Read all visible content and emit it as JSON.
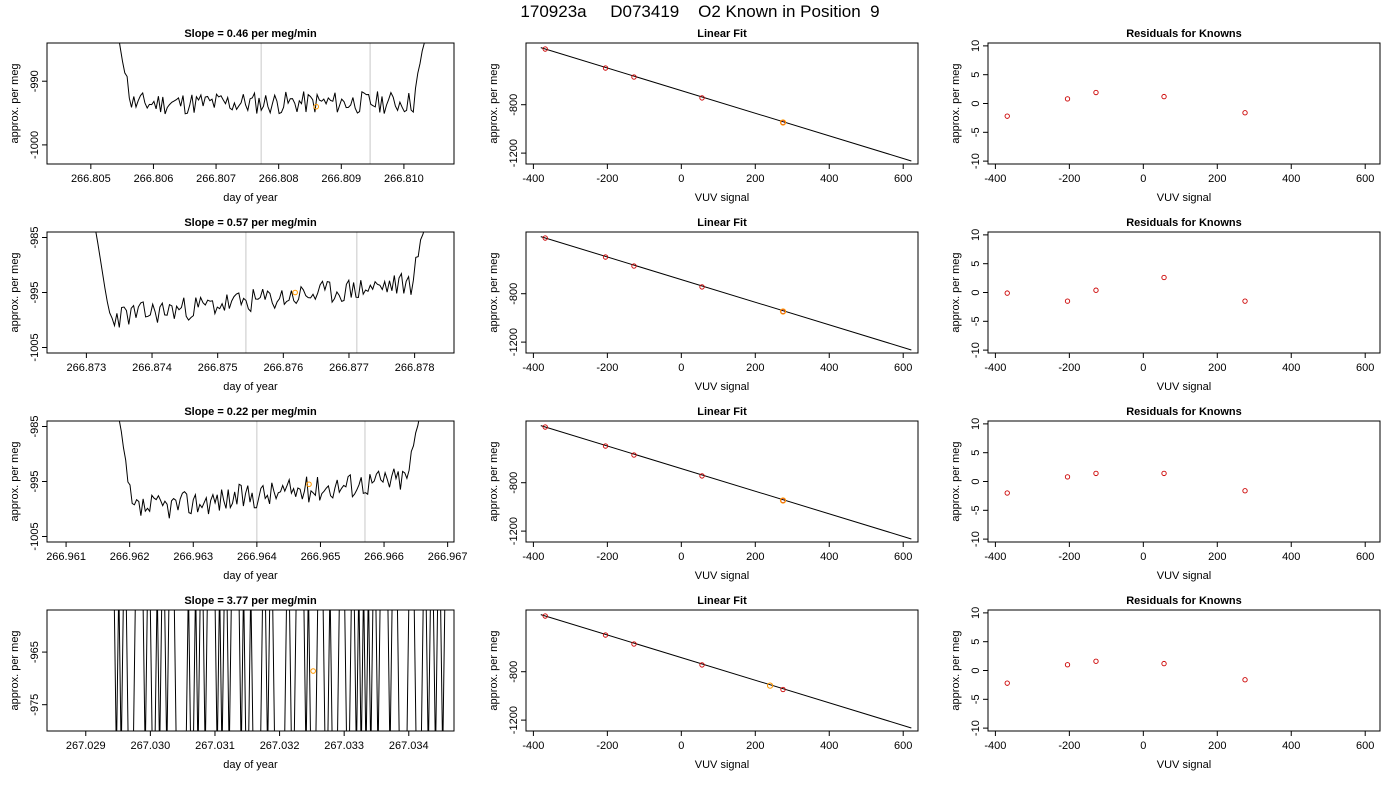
{
  "title": "170923a     D073419    O2 Known in Position  9",
  "colors": {
    "trace": "#000000",
    "known_point": "#cc0000",
    "highlight_point": "#ff9900",
    "window_line": "#c8c8c8"
  },
  "chart_data": [
    {
      "type": "line",
      "title": "Slope =  0.46  per meg/min",
      "xlabel": "day of year",
      "ylabel": "approx. per meg",
      "xlim": [
        266.8043,
        266.8108
      ],
      "ylim": [
        -1003,
        -984
      ],
      "xticks": [
        266.805,
        266.806,
        266.807,
        266.808,
        266.809,
        266.81
      ],
      "xtick_labels": [
        "266.805",
        "266.806",
        "266.807",
        "266.808",
        "266.809",
        "266.810"
      ],
      "yticks": [
        -1000,
        -990
      ],
      "ytick_labels": [
        "-1000",
        "-990"
      ],
      "window": [
        266.80772,
        266.80946
      ],
      "marker": {
        "x": 266.8086,
        "y": -994.0
      },
      "trace": {
        "start": 266.8054,
        "end": 266.8104,
        "base_start": -993.5,
        "base_end": -993.3,
        "amp": 1.8,
        "seed": 11,
        "edge_lo": -985,
        "edge_hi": -984
      }
    },
    {
      "type": "scatter",
      "title": "Linear Fit",
      "xlabel": "VUV signal",
      "ylabel": "approx. per meg",
      "xlim": [
        -420,
        640
      ],
      "ylim": [
        -1290,
        -290
      ],
      "xticks": [
        -400,
        -200,
        0,
        200,
        400,
        600
      ],
      "xtick_labels": [
        "-400",
        "-200",
        "0",
        "200",
        "400",
        "600"
      ],
      "yticks": [
        -1200,
        -800
      ],
      "ytick_labels": [
        "-1200",
        "-800"
      ],
      "fit_line": {
        "x": [
          -380,
          622
        ],
        "y": [
          -328,
          -1265
        ]
      },
      "points": [
        {
          "x": -368,
          "y": -340
        },
        {
          "x": -205,
          "y": -497
        },
        {
          "x": -128,
          "y": -571
        },
        {
          "x": 56,
          "y": -744
        },
        {
          "x": 275,
          "y": -947
        }
      ],
      "highlight": [
        {
          "x": 275,
          "y": -947
        }
      ]
    },
    {
      "type": "scatter",
      "title": "Residuals for Knowns",
      "xlabel": "VUV signal",
      "ylabel": "approx. per meg",
      "xlim": [
        -420,
        640
      ],
      "ylim": [
        -10.5,
        10.5
      ],
      "xticks": [
        -400,
        -200,
        0,
        200,
        400,
        600
      ],
      "xtick_labels": [
        "-400",
        "-200",
        "0",
        "200",
        "400",
        "600"
      ],
      "yticks": [
        -10,
        -5,
        0,
        5,
        10
      ],
      "ytick_labels": [
        "-10",
        "-5",
        "0",
        "5",
        "10"
      ],
      "points": [
        {
          "x": -368,
          "y": -2.2
        },
        {
          "x": -205,
          "y": 0.8
        },
        {
          "x": -128,
          "y": 1.9
        },
        {
          "x": 56,
          "y": 1.2
        },
        {
          "x": 275,
          "y": -1.6
        }
      ]
    },
    {
      "type": "line",
      "title": "Slope =  0.57  per meg/min",
      "xlabel": "day of year",
      "ylabel": "approx. per meg",
      "xlim": [
        266.8724,
        266.8786
      ],
      "ylim": [
        -1006,
        -984
      ],
      "xticks": [
        266.873,
        266.874,
        266.875,
        266.876,
        266.877,
        266.878
      ],
      "xtick_labels": [
        "266.873",
        "266.874",
        "266.875",
        "266.876",
        "266.877",
        "266.878"
      ],
      "yticks": [
        -1005,
        -995,
        -985
      ],
      "ytick_labels": [
        "-1005",
        "-995",
        "-985"
      ],
      "window": [
        266.87543,
        266.87712
      ],
      "marker": {
        "x": 266.87618,
        "y": -995.0
      },
      "trace": {
        "start": 266.8731,
        "end": 266.8782,
        "base_start": -999.8,
        "base_end": -993.0,
        "amp": 2.2,
        "seed": 23,
        "edge_lo": -985,
        "edge_hi": -985
      }
    },
    {
      "type": "scatter",
      "title": "Linear Fit",
      "xlabel": "VUV signal",
      "ylabel": "approx. per meg",
      "xlim": [
        -420,
        640
      ],
      "ylim": [
        -1290,
        -290
      ],
      "xticks": [
        -400,
        -200,
        0,
        200,
        400,
        600
      ],
      "xtick_labels": [
        "-400",
        "-200",
        "0",
        "200",
        "400",
        "600"
      ],
      "yticks": [
        -1200,
        -800
      ],
      "ytick_labels": [
        "-1200",
        "-800"
      ],
      "fit_line": {
        "x": [
          -380,
          622
        ],
        "y": [
          -328,
          -1265
        ]
      },
      "points": [
        {
          "x": -368,
          "y": -340
        },
        {
          "x": -205,
          "y": -497
        },
        {
          "x": -128,
          "y": -571
        },
        {
          "x": 56,
          "y": -744
        },
        {
          "x": 275,
          "y": -947
        }
      ],
      "highlight": [
        {
          "x": 275,
          "y": -947
        }
      ]
    },
    {
      "type": "scatter",
      "title": "Residuals for Knowns",
      "xlabel": "VUV signal",
      "ylabel": "approx. per meg",
      "xlim": [
        -420,
        640
      ],
      "ylim": [
        -10.5,
        10.5
      ],
      "xticks": [
        -400,
        -200,
        0,
        200,
        400,
        600
      ],
      "xtick_labels": [
        "-400",
        "-200",
        "0",
        "200",
        "400",
        "600"
      ],
      "yticks": [
        -10,
        -5,
        0,
        5,
        10
      ],
      "ytick_labels": [
        "-10",
        "-5",
        "0",
        "5",
        "10"
      ],
      "points": [
        {
          "x": -368,
          "y": -0.1
        },
        {
          "x": -205,
          "y": -1.5
        },
        {
          "x": -128,
          "y": 0.4
        },
        {
          "x": 56,
          "y": 2.6
        },
        {
          "x": 275,
          "y": -1.5
        }
      ]
    },
    {
      "type": "line",
      "title": "Slope =  0.22  per meg/min",
      "xlabel": "day of year",
      "ylabel": "approx. per meg",
      "xlim": [
        266.9607,
        266.9671
      ],
      "ylim": [
        -1006,
        -984
      ],
      "xticks": [
        266.961,
        266.962,
        266.963,
        266.964,
        266.965,
        266.966,
        266.967
      ],
      "xtick_labels": [
        "266.961",
        "266.962",
        "266.963",
        "266.964",
        "266.965",
        "266.966",
        "266.967"
      ],
      "yticks": [
        -1005,
        -995,
        -985
      ],
      "ytick_labels": [
        "-1005",
        "-995",
        "-985"
      ],
      "window": [
        266.964,
        266.9657
      ],
      "marker": {
        "x": 266.96482,
        "y": -995.5
      },
      "trace": {
        "start": 266.9618,
        "end": 266.9666,
        "base_start": -1000.5,
        "base_end": -994.0,
        "amp": 2.4,
        "seed": 37,
        "edge_lo": -985,
        "edge_hi": -985
      }
    },
    {
      "type": "scatter",
      "title": "Linear Fit",
      "xlabel": "VUV signal",
      "ylabel": "approx. per meg",
      "xlim": [
        -420,
        640
      ],
      "ylim": [
        -1290,
        -290
      ],
      "xticks": [
        -400,
        -200,
        0,
        200,
        400,
        600
      ],
      "xtick_labels": [
        "-400",
        "-200",
        "0",
        "200",
        "400",
        "600"
      ],
      "yticks": [
        -1200,
        -800
      ],
      "ytick_labels": [
        "-1200",
        "-800"
      ],
      "fit_line": {
        "x": [
          -380,
          622
        ],
        "y": [
          -328,
          -1265
        ]
      },
      "points": [
        {
          "x": -368,
          "y": -340
        },
        {
          "x": -205,
          "y": -497
        },
        {
          "x": -128,
          "y": -571
        },
        {
          "x": 56,
          "y": -744
        },
        {
          "x": 275,
          "y": -947
        }
      ],
      "highlight": [
        {
          "x": 275,
          "y": -947
        }
      ]
    },
    {
      "type": "scatter",
      "title": "Residuals for Knowns",
      "xlabel": "VUV signal",
      "ylabel": "approx. per meg",
      "xlim": [
        -420,
        640
      ],
      "ylim": [
        -10.5,
        10.5
      ],
      "xticks": [
        -400,
        -200,
        0,
        200,
        400,
        600
      ],
      "xtick_labels": [
        "-400",
        "-200",
        "0",
        "200",
        "400",
        "600"
      ],
      "yticks": [
        -10,
        -5,
        0,
        5,
        10
      ],
      "ytick_labels": [
        "-10",
        "-5",
        "0",
        "5",
        "10"
      ],
      "points": [
        {
          "x": -368,
          "y": -2.0
        },
        {
          "x": -205,
          "y": 0.8
        },
        {
          "x": -128,
          "y": 1.4
        },
        {
          "x": 56,
          "y": 1.4
        },
        {
          "x": 275,
          "y": -1.6
        }
      ]
    },
    {
      "type": "line",
      "title": "Slope =  3.77  per meg/min",
      "xlabel": "day of year",
      "ylabel": "approx. per meg",
      "xlim": [
        267.0284,
        267.0347
      ],
      "ylim": [
        -980,
        -957
      ],
      "xticks": [
        267.029,
        267.03,
        267.031,
        267.032,
        267.033,
        267.034
      ],
      "xtick_labels": [
        "267.029",
        "267.030",
        "267.031",
        "267.032",
        "267.033",
        "267.034"
      ],
      "yticks": [
        -975,
        -965
      ],
      "ytick_labels": [
        "-975",
        "-965"
      ],
      "window": null,
      "marker": {
        "x": 267.03252,
        "y": -968.6
      },
      "trace": {
        "start": 267.0294,
        "end": 267.0346,
        "base_start": -968,
        "base_end": -968,
        "amp": 40,
        "seed": 53,
        "edge_lo": -957,
        "edge_hi": -957,
        "spiky": true
      }
    },
    {
      "type": "scatter",
      "title": "Linear Fit",
      "xlabel": "VUV signal",
      "ylabel": "approx. per meg",
      "xlim": [
        -420,
        640
      ],
      "ylim": [
        -1290,
        -290
      ],
      "xticks": [
        -400,
        -200,
        0,
        200,
        400,
        600
      ],
      "xtick_labels": [
        "-400",
        "-200",
        "0",
        "200",
        "400",
        "600"
      ],
      "yticks": [
        -1200,
        -800
      ],
      "ytick_labels": [
        "-1200",
        "-800"
      ],
      "fit_line": {
        "x": [
          -380,
          622
        ],
        "y": [
          -328,
          -1265
        ]
      },
      "points": [
        {
          "x": -368,
          "y": -340
        },
        {
          "x": -205,
          "y": -497
        },
        {
          "x": -128,
          "y": -571
        },
        {
          "x": 56,
          "y": -744
        },
        {
          "x": 275,
          "y": -947
        }
      ],
      "highlight": [
        {
          "x": 240,
          "y": -915
        }
      ]
    },
    {
      "type": "scatter",
      "title": "Residuals for Knowns",
      "xlabel": "VUV signal",
      "ylabel": "approx. per meg",
      "xlim": [
        -420,
        640
      ],
      "ylim": [
        -10.5,
        10.5
      ],
      "xticks": [
        -400,
        -200,
        0,
        200,
        400,
        600
      ],
      "xtick_labels": [
        "-400",
        "-200",
        "0",
        "200",
        "400",
        "600"
      ],
      "yticks": [
        -10,
        -5,
        0,
        5,
        10
      ],
      "ytick_labels": [
        "-10",
        "-5",
        "0",
        "5",
        "10"
      ],
      "points": [
        {
          "x": -368,
          "y": -2.2
        },
        {
          "x": -205,
          "y": 1.0
        },
        {
          "x": -128,
          "y": 1.6
        },
        {
          "x": 56,
          "y": 1.2
        },
        {
          "x": 275,
          "y": -1.6
        }
      ]
    }
  ]
}
